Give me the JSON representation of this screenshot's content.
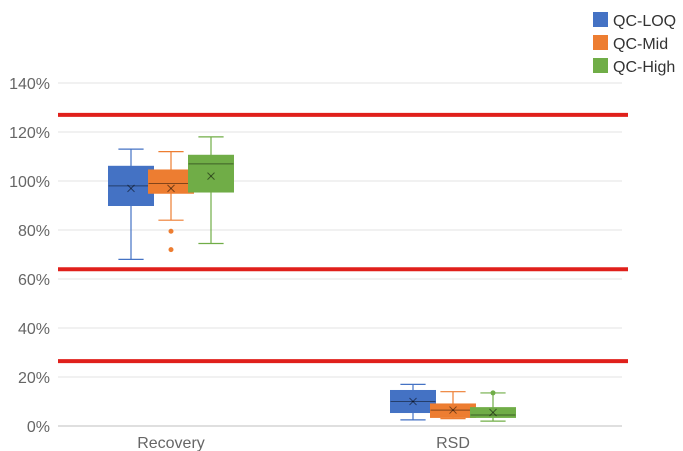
{
  "chart_data": {
    "type": "box",
    "categories": [
      "Recovery",
      "RSD"
    ],
    "y_ticks": [
      "0%",
      "20%",
      "40%",
      "60%",
      "80%",
      "100%",
      "120%",
      "140%"
    ],
    "ylim": [
      0,
      140
    ],
    "grid": true,
    "legend_position": "top-right",
    "reference_lines": [
      26.5,
      64,
      127
    ],
    "reference_line_color": "#e0201b",
    "series": [
      {
        "name": "QC-LOQ",
        "color": "#4472c4",
        "boxes": [
          {
            "category": "Recovery",
            "min": 68,
            "q1": 90,
            "median": 98,
            "q3": 106,
            "max": 113,
            "mean": 97,
            "outliers": []
          },
          {
            "category": "RSD",
            "min": 2.5,
            "q1": 5.5,
            "median": 10,
            "q3": 14.5,
            "max": 17,
            "mean": 10,
            "outliers": []
          }
        ]
      },
      {
        "name": "QC-Mid",
        "color": "#ed7d31",
        "boxes": [
          {
            "category": "Recovery",
            "min": 84,
            "q1": 95,
            "median": 99,
            "q3": 104.5,
            "max": 112,
            "mean": 97,
            "outliers": [
              79.5,
              72
            ]
          },
          {
            "category": "RSD",
            "min": 3,
            "q1": 3.5,
            "median": 6.5,
            "q3": 9,
            "max": 14,
            "mean": 6.5,
            "outliers": []
          }
        ]
      },
      {
        "name": "QC-High",
        "color": "#70ad47",
        "boxes": [
          {
            "category": "Recovery",
            "min": 74.5,
            "q1": 95.5,
            "median": 107,
            "q3": 110.5,
            "max": 118,
            "mean": 102,
            "outliers": []
          },
          {
            "category": "RSD",
            "min": 2,
            "q1": 3.5,
            "median": 4.5,
            "q3": 7.5,
            "max": 13.5,
            "mean": 5.5,
            "outliers": [
              13.5
            ]
          }
        ]
      }
    ]
  }
}
